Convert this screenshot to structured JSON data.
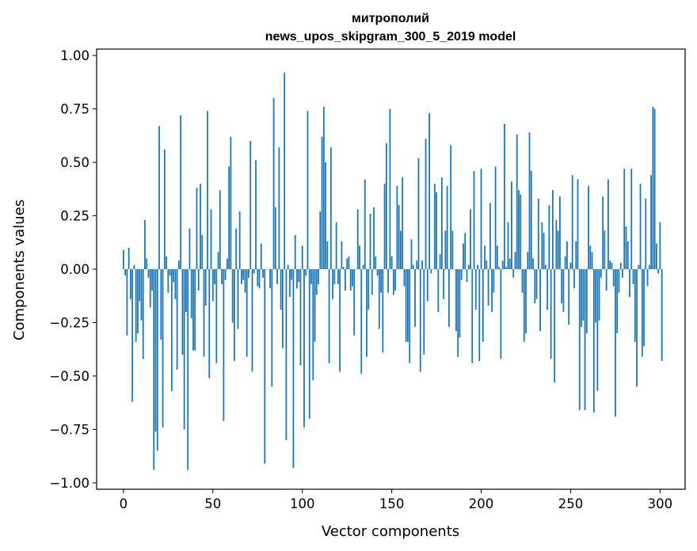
{
  "chart_data": {
    "type": "bar",
    "title": "митрополий",
    "subtitle": "news_upos_skipgram_300_5_2019 model",
    "xlabel": "Vector components",
    "ylabel": "Components values",
    "xlim": [
      -15,
      314
    ],
    "ylim": [
      -1.03,
      1.03
    ],
    "xticks": [
      0,
      50,
      100,
      150,
      200,
      250,
      300
    ],
    "xtick_labels": [
      "0",
      "50",
      "100",
      "150",
      "200",
      "250",
      "300"
    ],
    "yticks": [
      1.0,
      0.75,
      0.5,
      0.25,
      0.0,
      -0.25,
      -0.5,
      -0.75,
      -1.0
    ],
    "ytick_labels": [
      "1.00",
      "0.75",
      "0.50",
      "0.25",
      "0.00",
      "−0.25",
      "−0.50",
      "−0.75",
      "−1.00"
    ],
    "bar_color": "#1f77b4",
    "grid": false,
    "legend": "none",
    "values": [
      0.09,
      -0.03,
      -0.31,
      0.1,
      -0.14,
      -0.62,
      0.02,
      -0.34,
      -0.3,
      -0.15,
      -0.24,
      -0.42,
      0.23,
      0.05,
      -0.04,
      -0.18,
      -0.1,
      -0.94,
      -0.76,
      -0.85,
      0.67,
      -0.33,
      -0.74,
      0.56,
      0.06,
      -0.11,
      -0.03,
      -0.57,
      -0.06,
      -0.14,
      -0.47,
      0.04,
      0.72,
      -0.4,
      -0.75,
      -0.2,
      -0.94,
      0.19,
      -0.23,
      -0.38,
      -0.38,
      0.38,
      -0.1,
      0.4,
      0.16,
      -0.41,
      -0.17,
      0.74,
      -0.51,
      0.28,
      -0.15,
      -0.07,
      -0.44,
      0.08,
      0.37,
      -0.07,
      -0.71,
      -0.05,
      0.05,
      0.48,
      0.62,
      -0.25,
      -0.43,
      0.19,
      -0.28,
      0.27,
      -0.07,
      -0.05,
      -0.11,
      -0.41,
      -0.04,
      0.6,
      -0.48,
      -0.02,
      0.51,
      -0.08,
      -0.09,
      0.12,
      -0.04,
      -0.91,
      0.0,
      0.0,
      -0.09,
      -0.55,
      0.8,
      0.29,
      -0.07,
      0.57,
      -0.19,
      -0.37,
      0.92,
      -0.8,
      0.02,
      -0.13,
      -0.05,
      -0.93,
      0.16,
      -0.09,
      -0.06,
      -0.45,
      0.11,
      -0.74,
      -0.03,
      0.74,
      -0.7,
      -0.07,
      -0.52,
      -0.34,
      -0.12,
      -0.07,
      0.27,
      0.62,
      0.76,
      0.5,
      0.13,
      -0.44,
      0.57,
      -0.14,
      -0.07,
      0.22,
      -0.07,
      -0.48,
      0.13,
      0.01,
      -0.1,
      0.05,
      0.06,
      -0.1,
      -0.08,
      -0.31,
      0.0,
      0.28,
      0.11,
      -0.49,
      0.02,
      0.42,
      -0.41,
      -0.19,
      0.26,
      -0.12,
      0.29,
      0.06,
      -0.03,
      -0.28,
      -0.11,
      -0.39,
      0.4,
      0.59,
      -0.11,
      0.75,
      0.06,
      -0.12,
      -0.1,
      0.39,
      0.3,
      0.18,
      0.43,
      -0.08,
      -0.34,
      -0.34,
      -0.44,
      0.14,
      0.02,
      -0.27,
      0.04,
      0.52,
      -0.48,
      0.04,
      -0.4,
      0.61,
      -0.15,
      0.73,
      -0.02,
      0.0,
      0.4,
      0.36,
      -0.2,
      0.07,
      0.43,
      -0.14,
      0.18,
      0.39,
      -0.27,
      0.58,
      0.18,
      0.0,
      -0.29,
      -0.41,
      -0.32,
      -0.05,
      0.12,
      0.17,
      -0.06,
      0.02,
      0.28,
      -0.44,
      0.46,
      -0.19,
      0.02,
      -0.43,
      0.47,
      -0.34,
      0.11,
      0.04,
      -0.17,
      0.31,
      -0.2,
      -0.11,
      0.48,
      0.11,
      0.01,
      -0.42,
      0.04,
      0.68,
      0.01,
      0.22,
      0.05,
      0.41,
      -0.04,
      0.08,
      0.63,
      0.37,
      0.35,
      -0.11,
      -0.34,
      -0.3,
      0.08,
      0.64,
      0.46,
      0.05,
      -0.16,
      -0.14,
      0.33,
      -0.29,
      0.22,
      0.17,
      0.02,
      -0.19,
      0.3,
      -0.42,
      0.37,
      -0.53,
      0.23,
      0.18,
      0.34,
      -0.16,
      -0.2,
      0.06,
      0.13,
      -0.26,
      0.03,
      0.44,
      -0.09,
      0.13,
      0.42,
      -0.66,
      -0.27,
      -0.24,
      -0.66,
      -0.3,
      0.39,
      0.11,
      0.08,
      -0.67,
      -0.25,
      -0.57,
      -0.24,
      -0.04,
      0.34,
      0.18,
      -0.1,
      0.42,
      0.04,
      0.03,
      -0.08,
      -0.69,
      -0.3,
      -0.11,
      0.03,
      -0.04,
      0.47,
      0.2,
      0.13,
      -0.13,
      0.47,
      -0.07,
      -0.34,
      -0.55,
      0.02,
      0.4,
      -0.41,
      -0.36,
      0.33,
      -0.08,
      0.02,
      0.44,
      0.76,
      0.75,
      0.12,
      -0.02,
      0.22,
      -0.43
    ]
  }
}
